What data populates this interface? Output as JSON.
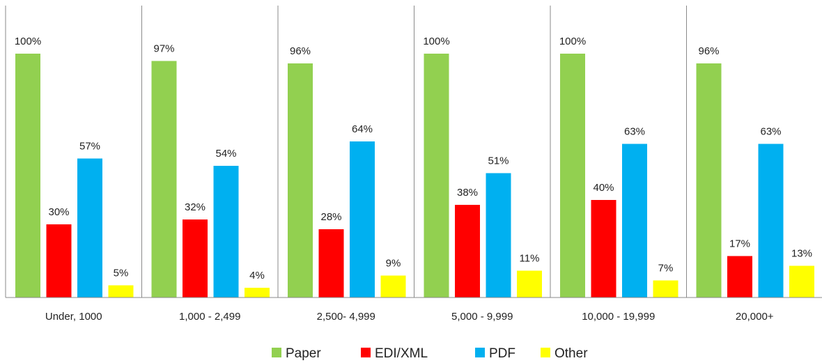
{
  "chart_data": {
    "type": "bar",
    "title": "",
    "xlabel": "",
    "ylabel": "",
    "ylim": [
      0,
      100
    ],
    "grid": false,
    "legend_position": "bottom",
    "categories": [
      "Under, 1000",
      "1,000 - 2,499",
      "2,500- 4,999",
      "5,000 - 9,999",
      "10,000 - 19,999",
      "20,000+"
    ],
    "series": [
      {
        "name": "Paper",
        "color": "#92D050",
        "values": [
          100,
          97,
          96,
          100,
          100,
          96
        ],
        "labels": [
          "100%",
          "97%",
          "96%",
          "100%",
          "100%",
          "96%"
        ]
      },
      {
        "name": "EDI/XML",
        "color": "#FF0000",
        "values": [
          30,
          32,
          28,
          38,
          40,
          17
        ],
        "labels": [
          "30%",
          "32%",
          "28%",
          "38%",
          "40%",
          "17%"
        ]
      },
      {
        "name": "PDF",
        "color": "#00B0F0",
        "values": [
          57,
          54,
          64,
          51,
          63,
          63
        ],
        "labels": [
          "57%",
          "54%",
          "64%",
          "51%",
          "63%",
          "63%"
        ]
      },
      {
        "name": "Other",
        "color": "#FFFF00",
        "values": [
          5,
          4,
          9,
          11,
          7,
          13
        ],
        "labels": [
          "5%",
          "4%",
          "9%",
          "11%",
          "7%",
          "13%"
        ]
      }
    ]
  }
}
